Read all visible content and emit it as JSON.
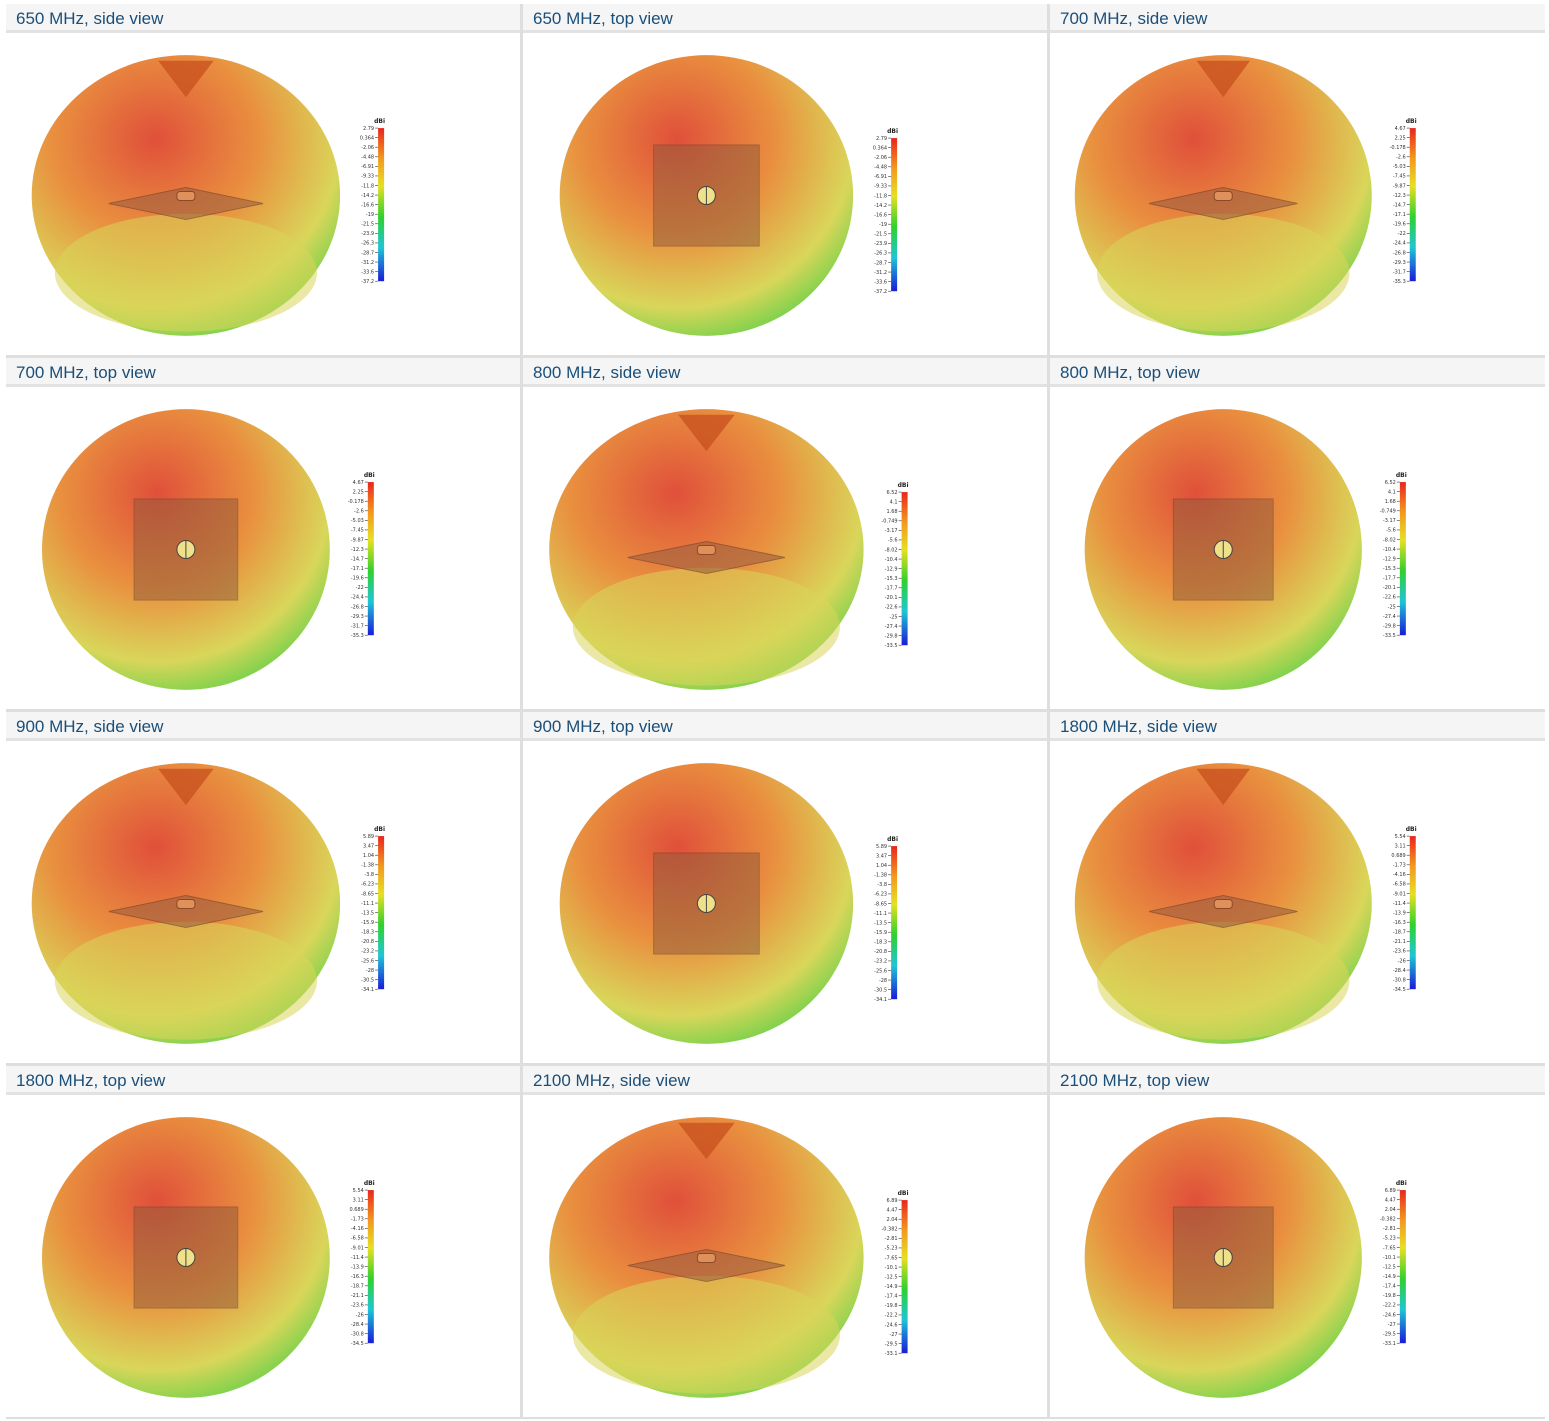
{
  "colors": {
    "caption_text": "#1a4f7a",
    "caption_bg": "#f5f5f5",
    "grid_line": "#dedede",
    "pattern_red": "#e0503a",
    "pattern_orange": "#e9903f",
    "pattern_yellow": "#d9d65a",
    "pattern_green": "#6fd14a"
  },
  "panels": [
    {
      "caption": "650 MHz, side view",
      "view": "side",
      "unit": "dBi",
      "scale": [
        "2.79",
        "0.364",
        "-2.06",
        "-4.48",
        "-6.91",
        "-9.33",
        "-11.8",
        "-14.2",
        "-16.6",
        "-19",
        "-21.5",
        "-23.9",
        "-26.3",
        "-28.7",
        "-31.2",
        "-33.6",
        "-37.2"
      ]
    },
    {
      "caption": "650 MHz, top view",
      "view": "top",
      "unit": "dBi",
      "scale": [
        "2.79",
        "0.364",
        "-2.06",
        "-4.48",
        "-6.91",
        "-9.33",
        "-11.8",
        "-14.2",
        "-16.6",
        "-19",
        "-21.5",
        "-23.9",
        "-26.3",
        "-28.7",
        "-31.2",
        "-33.6",
        "-37.2"
      ]
    },
    {
      "caption": "700 MHz, side view",
      "view": "side",
      "unit": "dBi",
      "scale": [
        "4.67",
        "2.25",
        "-0.178",
        "-2.6",
        "-5.03",
        "-7.45",
        "-9.87",
        "-12.3",
        "-14.7",
        "-17.1",
        "-19.6",
        "-22",
        "-24.4",
        "-26.8",
        "-29.3",
        "-31.7",
        "-35.3"
      ]
    },
    {
      "caption": "700 MHz, top view",
      "view": "top",
      "unit": "dBi",
      "scale": [
        "4.67",
        "2.25",
        "-0.178",
        "-2.6",
        "-5.03",
        "-7.45",
        "-9.87",
        "-12.3",
        "-14.7",
        "-17.1",
        "-19.6",
        "-22",
        "-24.4",
        "-26.8",
        "-29.3",
        "-31.7",
        "-35.3"
      ]
    },
    {
      "caption": "800 MHz, side view",
      "view": "side",
      "unit": "dBi",
      "scale": [
        "6.52",
        "4.1",
        "1.68",
        "-0.749",
        "-3.17",
        "-5.6",
        "-8.02",
        "-10.4",
        "-12.9",
        "-15.3",
        "-17.7",
        "-20.1",
        "-22.6",
        "-25",
        "-27.4",
        "-29.8",
        "-33.5"
      ]
    },
    {
      "caption": "800 MHz, top view",
      "view": "top",
      "unit": "dBi",
      "scale": [
        "6.52",
        "4.1",
        "1.68",
        "-0.749",
        "-3.17",
        "-5.6",
        "-8.02",
        "-10.4",
        "-12.9",
        "-15.3",
        "-17.7",
        "-20.1",
        "-22.6",
        "-25",
        "-27.4",
        "-29.8",
        "-33.5"
      ]
    },
    {
      "caption": "900 MHz, side view",
      "view": "side",
      "unit": "dBi",
      "scale": [
        "5.89",
        "3.47",
        "1.04",
        "-1.38",
        "-3.8",
        "-6.23",
        "-8.65",
        "-11.1",
        "-13.5",
        "-15.9",
        "-18.3",
        "-20.8",
        "-23.2",
        "-25.6",
        "-28",
        "-30.5",
        "-34.1"
      ]
    },
    {
      "caption": "900 MHz, top view",
      "view": "top",
      "unit": "dBi",
      "scale": [
        "5.89",
        "3.47",
        "1.04",
        "-1.38",
        "-3.8",
        "-6.23",
        "-8.65",
        "-11.1",
        "-13.5",
        "-15.9",
        "-18.3",
        "-20.8",
        "-23.2",
        "-25.6",
        "-28",
        "-30.5",
        "-34.1"
      ]
    },
    {
      "caption": "1800 MHz, side view",
      "view": "side",
      "unit": "dBi",
      "scale": [
        "5.54",
        "3.11",
        "0.689",
        "-1.73",
        "-4.16",
        "-6.58",
        "-9.01",
        "-11.4",
        "-13.9",
        "-16.3",
        "-18.7",
        "-21.1",
        "-23.6",
        "-26",
        "-28.4",
        "-30.8",
        "-34.5"
      ]
    },
    {
      "caption": "1800 MHz, top view",
      "view": "top",
      "unit": "dBi",
      "scale": [
        "5.54",
        "3.11",
        "0.689",
        "-1.73",
        "-4.16",
        "-6.58",
        "-9.01",
        "-11.4",
        "-13.9",
        "-16.3",
        "-18.7",
        "-21.1",
        "-23.6",
        "-26",
        "-28.4",
        "-30.8",
        "-34.5"
      ]
    },
    {
      "caption": "2100 MHz, side view",
      "view": "side",
      "unit": "dBi",
      "scale": [
        "6.89",
        "4.47",
        "2.04",
        "-0.382",
        "-2.81",
        "-5.23",
        "-7.65",
        "-10.1",
        "-12.5",
        "-14.9",
        "-17.4",
        "-19.8",
        "-22.2",
        "-24.6",
        "-27",
        "-29.5",
        "-33.1"
      ]
    },
    {
      "caption": "2100 MHz, top view",
      "view": "top",
      "unit": "dBi",
      "scale": [
        "6.89",
        "4.47",
        "2.04",
        "-0.382",
        "-2.81",
        "-5.23",
        "-7.65",
        "-10.1",
        "-12.5",
        "-14.9",
        "-17.4",
        "-19.8",
        "-22.2",
        "-24.6",
        "-27",
        "-29.5",
        "-33.1"
      ]
    }
  ]
}
